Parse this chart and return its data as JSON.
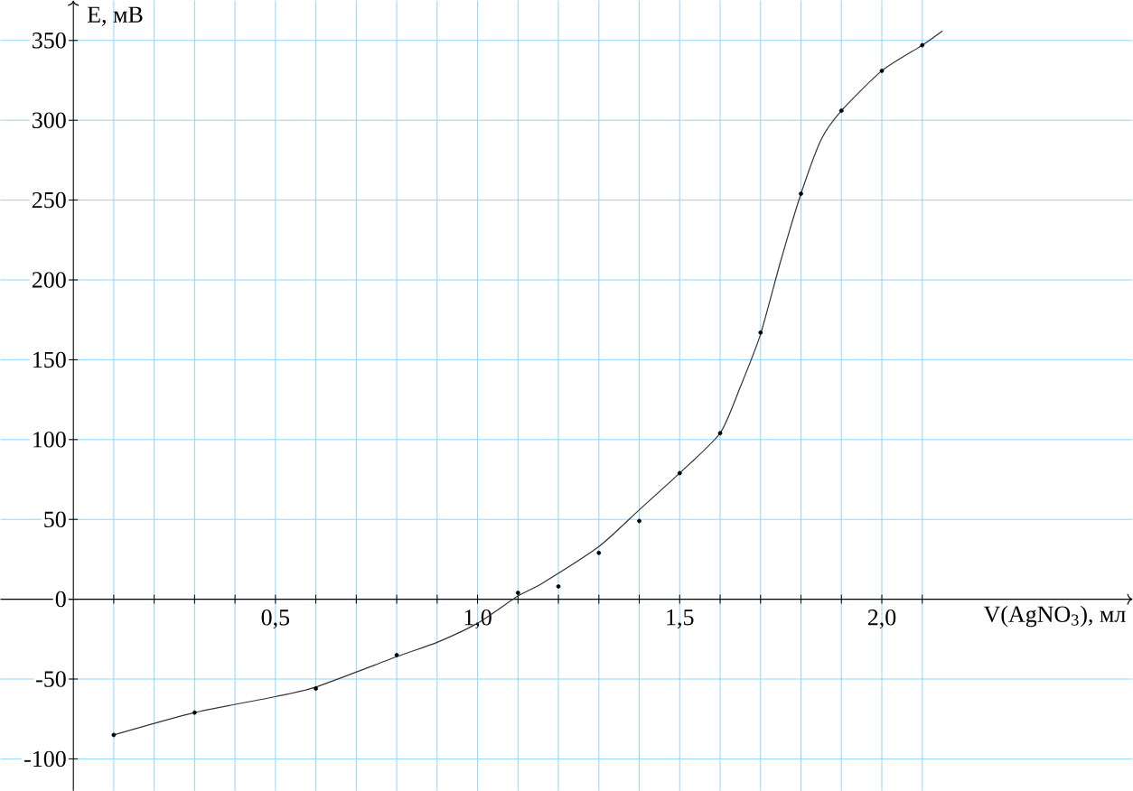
{
  "chart_data": {
    "type": "scatter",
    "xlabel": "V(AgNO$_{3}$), мл",
    "ylabel": "E, мВ",
    "series": [
      {
        "color": "#000000",
        "marker": "circle",
        "x": [
          0.1,
          0.3,
          0.6,
          0.8,
          1.1,
          1.2,
          1.3,
          1.4,
          1.5,
          1.6,
          1.7,
          1.8,
          1.9,
          2.0,
          2.1
        ],
        "values": [
          -85,
          -71,
          -56,
          -35,
          4,
          8,
          29,
          49,
          79,
          104,
          167,
          254,
          306,
          331,
          347
        ]
      },
      {
        "type": "line",
        "color": "#333333",
        "marker": "none",
        "x": [
          0.1,
          0.3,
          0.5,
          0.6,
          0.8,
          0.9,
          1.0,
          1.1,
          1.16,
          1.3,
          1.4,
          1.5,
          1.6,
          1.65,
          1.7,
          1.75,
          1.8,
          1.85,
          1.9,
          2.0,
          2.1,
          2.15
        ],
        "values": [
          -85,
          -71,
          -61,
          -55,
          -36,
          -27,
          -15,
          2,
          10,
          33,
          56,
          79,
          104,
          133,
          166,
          212,
          254,
          288,
          306,
          331,
          347,
          356
        ]
      }
    ],
    "xlim": [
      -0.18,
      2.62
    ],
    "ylim": [
      -120,
      375
    ],
    "xticks": [
      {
        "value": 0.1,
        "label": null
      },
      {
        "value": 0.2,
        "label": null
      },
      {
        "value": 0.3,
        "label": null
      },
      {
        "value": 0.4,
        "label": null
      },
      {
        "value": 0.5,
        "label": "0,5"
      },
      {
        "value": 0.6,
        "label": null
      },
      {
        "value": 0.7,
        "label": null
      },
      {
        "value": 0.8,
        "label": null
      },
      {
        "value": 0.9,
        "label": null
      },
      {
        "value": 1.0,
        "label": "1,0"
      },
      {
        "value": 1.1,
        "label": null
      },
      {
        "value": 1.2,
        "label": null
      },
      {
        "value": 1.3,
        "label": null
      },
      {
        "value": 1.4,
        "label": null
      },
      {
        "value": 1.5,
        "label": "1,5"
      },
      {
        "value": 1.6,
        "label": null
      },
      {
        "value": 1.7,
        "label": null
      },
      {
        "value": 1.8,
        "label": null
      },
      {
        "value": 1.9,
        "label": null
      },
      {
        "value": 2.0,
        "label": "2,0"
      },
      {
        "value": 2.1,
        "label": null
      }
    ],
    "yticks": [
      -100,
      -50,
      0,
      50,
      100,
      150,
      200,
      250,
      300,
      350
    ],
    "grid": true
  }
}
